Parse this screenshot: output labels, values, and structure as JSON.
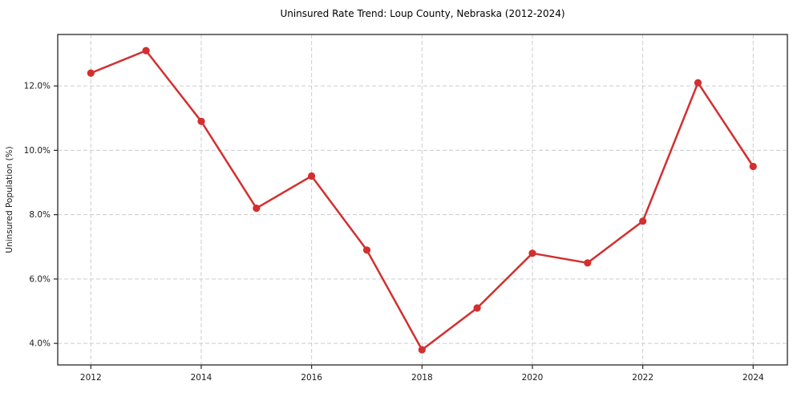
{
  "chart_data": {
    "type": "line",
    "title": "Uninsured Rate Trend: Loup County, Nebraska (2012-2024)",
    "xlabel": "",
    "ylabel": "Uninsured Population (%)",
    "x": [
      2012,
      2013,
      2014,
      2015,
      2016,
      2017,
      2018,
      2019,
      2020,
      2021,
      2022,
      2023,
      2024
    ],
    "values": [
      12.4,
      13.1,
      10.9,
      8.2,
      9.2,
      6.9,
      3.8,
      5.1,
      6.8,
      6.5,
      7.8,
      12.1,
      9.5
    ],
    "x_ticks": [
      2012,
      2014,
      2016,
      2018,
      2020,
      2022,
      2024
    ],
    "x_tick_labels": [
      "2012",
      "2014",
      "2016",
      "2018",
      "2020",
      "2022",
      "2024"
    ],
    "y_ticks": [
      4.0,
      6.0,
      8.0,
      10.0,
      12.0
    ],
    "y_tick_labels": [
      "4.0%",
      "6.0%",
      "8.0%",
      "10.0%",
      "12.0%"
    ],
    "xlim": [
      2011.4,
      2024.62
    ],
    "ylim": [
      3.33,
      13.6
    ],
    "grid": true,
    "grid_style": "dashed",
    "legend": "none",
    "line_color": "#d32f2f",
    "marker": "o",
    "grid_color": "#cccccc",
    "spine_color": "#262626",
    "tick_label_color": "#1a1a1a",
    "title_color": "#000000",
    "background": "#ffffff"
  }
}
